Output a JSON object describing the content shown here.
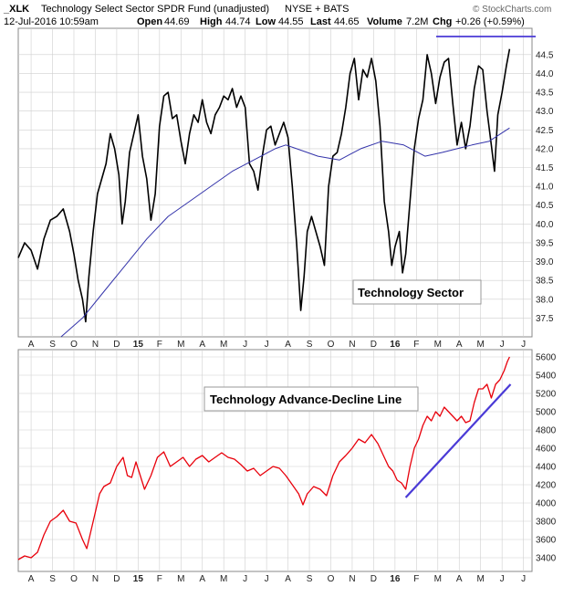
{
  "header": {
    "symbol": "_XLK",
    "name": "Technology Select Sector SPDR Fund (unadjusted)",
    "exchange": "NYSE + BATS",
    "datetime": "12-Jul-2016 10:59am",
    "open_label": "Open",
    "open": "44.69",
    "high_label": "High",
    "high": "44.74",
    "low_label": "Low",
    "low": "44.55",
    "last_label": "Last",
    "last": "44.65",
    "volume_label": "Volume",
    "volume": "7.2M",
    "chg_label": "Chg",
    "chg": "+0.26 (+0.59%)",
    "watermark": "© StockCharts.com"
  },
  "colors": {
    "price": "#000000",
    "ma": "#3333aa",
    "adline": "#e8000b",
    "trend": "#4a3ad6",
    "grid": "#cfcfcf"
  },
  "chart_data": [
    {
      "type": "line",
      "annotation": "Technology Sector",
      "x_ticks": [
        "A",
        "S",
        "O",
        "N",
        "D",
        "15",
        "F",
        "M",
        "A",
        "M",
        "J",
        "J",
        "A",
        "S",
        "O",
        "N",
        "D",
        "16",
        "F",
        "M",
        "A",
        "M",
        "J",
        "J"
      ],
      "bold_ticks": [
        "15",
        "16"
      ],
      "y_ticks": [
        "37.5",
        "38.0",
        "38.5",
        "39.0",
        "39.5",
        "40.0",
        "40.5",
        "41.0",
        "41.5",
        "42.0",
        "42.5",
        "43.0",
        "43.5",
        "44.0",
        "44.5"
      ],
      "ylim": [
        37.0,
        45.2
      ],
      "xlim": [
        0,
        24
      ],
      "series": [
        {
          "values": [
            [
              0,
              39.1
            ],
            [
              0.3,
              39.5
            ],
            [
              0.6,
              39.3
            ],
            [
              0.9,
              38.8
            ],
            [
              1.2,
              39.6
            ],
            [
              1.5,
              40.1
            ],
            [
              1.8,
              40.2
            ],
            [
              2.1,
              40.4
            ],
            [
              2.4,
              39.8
            ],
            [
              2.6,
              39.2
            ],
            [
              2.8,
              38.5
            ],
            [
              3.0,
              38.0
            ],
            [
              3.15,
              37.4
            ],
            [
              3.3,
              38.6
            ],
            [
              3.5,
              39.8
            ],
            [
              3.7,
              40.8
            ],
            [
              3.9,
              41.2
            ],
            [
              4.1,
              41.6
            ],
            [
              4.3,
              42.4
            ],
            [
              4.5,
              42.0
            ],
            [
              4.7,
              41.3
            ],
            [
              4.85,
              40.0
            ],
            [
              5.0,
              40.6
            ],
            [
              5.2,
              41.9
            ],
            [
              5.4,
              42.4
            ],
            [
              5.6,
              42.9
            ],
            [
              5.8,
              41.8
            ],
            [
              6.0,
              41.2
            ],
            [
              6.2,
              40.1
            ],
            [
              6.4,
              40.8
            ],
            [
              6.6,
              42.6
            ],
            [
              6.8,
              43.4
            ],
            [
              7.0,
              43.5
            ],
            [
              7.2,
              42.8
            ],
            [
              7.4,
              42.9
            ],
            [
              7.6,
              42.2
            ],
            [
              7.8,
              41.6
            ],
            [
              8.0,
              42.4
            ],
            [
              8.2,
              42.9
            ],
            [
              8.4,
              42.7
            ],
            [
              8.6,
              43.3
            ],
            [
              8.8,
              42.7
            ],
            [
              9.0,
              42.4
            ],
            [
              9.2,
              42.9
            ],
            [
              9.4,
              43.1
            ],
            [
              9.6,
              43.4
            ],
            [
              9.8,
              43.3
            ],
            [
              10.0,
              43.6
            ],
            [
              10.2,
              43.1
            ],
            [
              10.4,
              43.4
            ],
            [
              10.6,
              43.1
            ],
            [
              10.8,
              41.6
            ],
            [
              11.0,
              41.4
            ],
            [
              11.2,
              40.9
            ],
            [
              11.4,
              41.8
            ],
            [
              11.6,
              42.5
            ],
            [
              11.8,
              42.6
            ],
            [
              12.0,
              42.1
            ],
            [
              12.2,
              42.4
            ],
            [
              12.4,
              42.7
            ],
            [
              12.6,
              42.3
            ],
            [
              12.8,
              41.0
            ],
            [
              13.0,
              39.5
            ],
            [
              13.2,
              37.7
            ],
            [
              13.35,
              38.6
            ],
            [
              13.5,
              39.8
            ],
            [
              13.7,
              40.2
            ],
            [
              13.9,
              39.8
            ],
            [
              14.1,
              39.4
            ],
            [
              14.3,
              38.9
            ],
            [
              14.5,
              41.0
            ],
            [
              14.7,
              41.8
            ],
            [
              14.9,
              41.9
            ],
            [
              15.1,
              42.4
            ],
            [
              15.3,
              43.1
            ],
            [
              15.5,
              44.0
            ],
            [
              15.7,
              44.4
            ],
            [
              15.9,
              43.3
            ],
            [
              16.1,
              44.1
            ],
            [
              16.3,
              43.9
            ],
            [
              16.5,
              44.4
            ],
            [
              16.7,
              43.8
            ],
            [
              16.9,
              42.6
            ],
            [
              17.1,
              40.6
            ],
            [
              17.3,
              39.8
            ],
            [
              17.45,
              38.9
            ],
            [
              17.6,
              39.4
            ],
            [
              17.8,
              39.8
            ],
            [
              17.95,
              38.7
            ],
            [
              18.1,
              39.2
            ],
            [
              18.3,
              40.6
            ],
            [
              18.5,
              42.0
            ],
            [
              18.7,
              42.8
            ],
            [
              18.9,
              43.3
            ],
            [
              19.1,
              44.5
            ],
            [
              19.3,
              44.0
            ],
            [
              19.5,
              43.2
            ],
            [
              19.7,
              43.9
            ],
            [
              19.9,
              44.3
            ],
            [
              20.1,
              44.4
            ],
            [
              20.3,
              43.2
            ],
            [
              20.5,
              42.1
            ],
            [
              20.7,
              42.7
            ],
            [
              20.9,
              42.0
            ],
            [
              21.1,
              42.6
            ],
            [
              21.3,
              43.6
            ],
            [
              21.5,
              44.2
            ],
            [
              21.7,
              44.1
            ],
            [
              21.9,
              43.0
            ],
            [
              22.1,
              42.1
            ],
            [
              22.25,
              41.4
            ],
            [
              22.4,
              42.9
            ],
            [
              22.6,
              43.5
            ],
            [
              22.8,
              44.2
            ],
            [
              22.95,
              44.65
            ]
          ]
        },
        {
          "values": [
            [
              2.0,
              37.0
            ],
            [
              3.0,
              37.5
            ],
            [
              4.0,
              38.2
            ],
            [
              5.0,
              38.9
            ],
            [
              6.0,
              39.6
            ],
            [
              7.0,
              40.2
            ],
            [
              8.0,
              40.6
            ],
            [
              9.0,
              41.0
            ],
            [
              10.0,
              41.4
            ],
            [
              11.0,
              41.7
            ],
            [
              12.0,
              42.0
            ],
            [
              12.5,
              42.1
            ],
            [
              13.0,
              42.0
            ],
            [
              14.0,
              41.8
            ],
            [
              15.0,
              41.7
            ],
            [
              16.0,
              42.0
            ],
            [
              17.0,
              42.2
            ],
            [
              18.0,
              42.1
            ],
            [
              19.0,
              41.8
            ],
            [
              19.8,
              41.9
            ],
            [
              20.5,
              42.0
            ],
            [
              21.2,
              42.1
            ],
            [
              22.0,
              42.2
            ],
            [
              22.95,
              42.55
            ]
          ]
        }
      ]
    },
    {
      "type": "line",
      "annotation": "Technology Advance-Decline Line",
      "x_ticks": [
        "A",
        "S",
        "O",
        "N",
        "D",
        "15",
        "F",
        "M",
        "A",
        "M",
        "J",
        "J",
        "A",
        "S",
        "O",
        "N",
        "D",
        "16",
        "F",
        "M",
        "A",
        "M",
        "J",
        "J"
      ],
      "bold_ticks": [
        "15",
        "16"
      ],
      "y_ticks": [
        "3400",
        "3600",
        "3800",
        "4000",
        "4200",
        "4400",
        "4600",
        "4800",
        "5000",
        "5200",
        "5400",
        "5600"
      ],
      "ylim": [
        3250,
        5680
      ],
      "xlim": [
        0,
        24
      ],
      "series": [
        {
          "values": [
            [
              0,
              3380
            ],
            [
              0.3,
              3420
            ],
            [
              0.6,
              3400
            ],
            [
              0.9,
              3460
            ],
            [
              1.2,
              3650
            ],
            [
              1.5,
              3800
            ],
            [
              1.8,
              3850
            ],
            [
              2.1,
              3920
            ],
            [
              2.4,
              3800
            ],
            [
              2.7,
              3780
            ],
            [
              3.0,
              3600
            ],
            [
              3.2,
              3500
            ],
            [
              3.4,
              3700
            ],
            [
              3.6,
              3900
            ],
            [
              3.8,
              4100
            ],
            [
              4.0,
              4180
            ],
            [
              4.3,
              4220
            ],
            [
              4.6,
              4400
            ],
            [
              4.9,
              4500
            ],
            [
              5.1,
              4300
            ],
            [
              5.3,
              4280
            ],
            [
              5.5,
              4450
            ],
            [
              5.7,
              4300
            ],
            [
              5.9,
              4150
            ],
            [
              6.2,
              4300
            ],
            [
              6.5,
              4500
            ],
            [
              6.8,
              4560
            ],
            [
              7.1,
              4400
            ],
            [
              7.4,
              4450
            ],
            [
              7.7,
              4500
            ],
            [
              8.0,
              4400
            ],
            [
              8.3,
              4480
            ],
            [
              8.6,
              4520
            ],
            [
              8.9,
              4450
            ],
            [
              9.2,
              4500
            ],
            [
              9.5,
              4550
            ],
            [
              9.8,
              4500
            ],
            [
              10.1,
              4480
            ],
            [
              10.4,
              4420
            ],
            [
              10.7,
              4350
            ],
            [
              11.0,
              4380
            ],
            [
              11.3,
              4300
            ],
            [
              11.6,
              4350
            ],
            [
              11.9,
              4400
            ],
            [
              12.2,
              4380
            ],
            [
              12.5,
              4300
            ],
            [
              12.8,
              4200
            ],
            [
              13.1,
              4100
            ],
            [
              13.3,
              3980
            ],
            [
              13.5,
              4100
            ],
            [
              13.8,
              4180
            ],
            [
              14.1,
              4150
            ],
            [
              14.4,
              4080
            ],
            [
              14.7,
              4300
            ],
            [
              15.0,
              4450
            ],
            [
              15.3,
              4520
            ],
            [
              15.6,
              4600
            ],
            [
              15.9,
              4700
            ],
            [
              16.2,
              4660
            ],
            [
              16.5,
              4750
            ],
            [
              16.8,
              4650
            ],
            [
              17.1,
              4500
            ],
            [
              17.3,
              4400
            ],
            [
              17.5,
              4350
            ],
            [
              17.7,
              4250
            ],
            [
              17.9,
              4220
            ],
            [
              18.1,
              4150
            ],
            [
              18.3,
              4400
            ],
            [
              18.5,
              4600
            ],
            [
              18.7,
              4700
            ],
            [
              18.9,
              4850
            ],
            [
              19.1,
              4950
            ],
            [
              19.3,
              4900
            ],
            [
              19.5,
              5000
            ],
            [
              19.7,
              4950
            ],
            [
              19.9,
              5050
            ],
            [
              20.1,
              5000
            ],
            [
              20.3,
              4950
            ],
            [
              20.5,
              4900
            ],
            [
              20.7,
              4950
            ],
            [
              20.9,
              4880
            ],
            [
              21.1,
              4900
            ],
            [
              21.3,
              5100
            ],
            [
              21.5,
              5250
            ],
            [
              21.7,
              5250
            ],
            [
              21.9,
              5300
            ],
            [
              22.1,
              5150
            ],
            [
              22.3,
              5300
            ],
            [
              22.5,
              5350
            ],
            [
              22.7,
              5450
            ],
            [
              22.85,
              5550
            ],
            [
              22.95,
              5600
            ]
          ]
        },
        {
          "values": [
            [
              18.1,
              4060
            ],
            [
              23.0,
              5300
            ]
          ]
        }
      ]
    }
  ]
}
